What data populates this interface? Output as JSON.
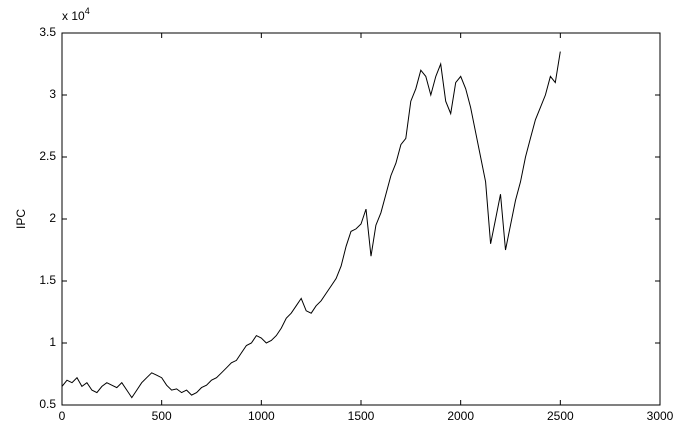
{
  "chart_data": {
    "type": "line",
    "y_label": "IPC",
    "y_multiplier": {
      "base": "x 10",
      "exponent": "4"
    },
    "x": [
      0,
      25,
      50,
      75,
      100,
      125,
      150,
      175,
      200,
      225,
      250,
      275,
      300,
      325,
      350,
      375,
      400,
      425,
      450,
      475,
      500,
      525,
      550,
      575,
      600,
      625,
      650,
      675,
      700,
      725,
      750,
      775,
      800,
      825,
      850,
      875,
      900,
      925,
      950,
      975,
      1000,
      1025,
      1050,
      1075,
      1100,
      1125,
      1150,
      1175,
      1200,
      1225,
      1250,
      1275,
      1300,
      1325,
      1350,
      1375,
      1400,
      1425,
      1450,
      1475,
      1500,
      1525,
      1550,
      1575,
      1600,
      1625,
      1650,
      1675,
      1700,
      1725,
      1750,
      1775,
      1800,
      1825,
      1850,
      1875,
      1900,
      1925,
      1950,
      1975,
      2000,
      2025,
      2050,
      2075,
      2100,
      2125,
      2150,
      2175,
      2200,
      2225,
      2250,
      2275,
      2300,
      2325,
      2350,
      2375,
      2400,
      2425,
      2450,
      2475,
      2500
    ],
    "series": [
      {
        "color": "#000000",
        "values": [
          0.65,
          0.7,
          0.68,
          0.72,
          0.65,
          0.68,
          0.62,
          0.6,
          0.65,
          0.68,
          0.66,
          0.64,
          0.68,
          0.62,
          0.56,
          0.62,
          0.68,
          0.72,
          0.76,
          0.74,
          0.72,
          0.66,
          0.62,
          0.63,
          0.6,
          0.62,
          0.58,
          0.6,
          0.64,
          0.66,
          0.7,
          0.72,
          0.76,
          0.8,
          0.84,
          0.86,
          0.92,
          0.98,
          1.0,
          1.06,
          1.04,
          1.0,
          1.02,
          1.06,
          1.12,
          1.2,
          1.24,
          1.3,
          1.36,
          1.26,
          1.24,
          1.3,
          1.34,
          1.4,
          1.46,
          1.52,
          1.62,
          1.78,
          1.9,
          1.92,
          1.96,
          2.08,
          1.7,
          1.95,
          2.05,
          2.2,
          2.35,
          2.45,
          2.6,
          2.65,
          2.95,
          3.05,
          3.2,
          3.15,
          3.0,
          3.15,
          3.25,
          2.95,
          2.85,
          3.1,
          3.15,
          3.05,
          2.9,
          2.7,
          2.5,
          2.3,
          1.8,
          2.0,
          2.2,
          1.75,
          1.95,
          2.15,
          2.3,
          2.5,
          2.65,
          2.8,
          2.9,
          3.0,
          3.15,
          3.1,
          3.35
        ]
      }
    ],
    "xlim": [
      0,
      3000
    ],
    "xticks": [
      0,
      500,
      1000,
      1500,
      2000,
      2500,
      3000
    ],
    "ylim": [
      0.5,
      3.5
    ],
    "yticks": [
      0.5,
      1,
      1.5,
      2,
      2.5,
      3,
      3.5
    ]
  }
}
